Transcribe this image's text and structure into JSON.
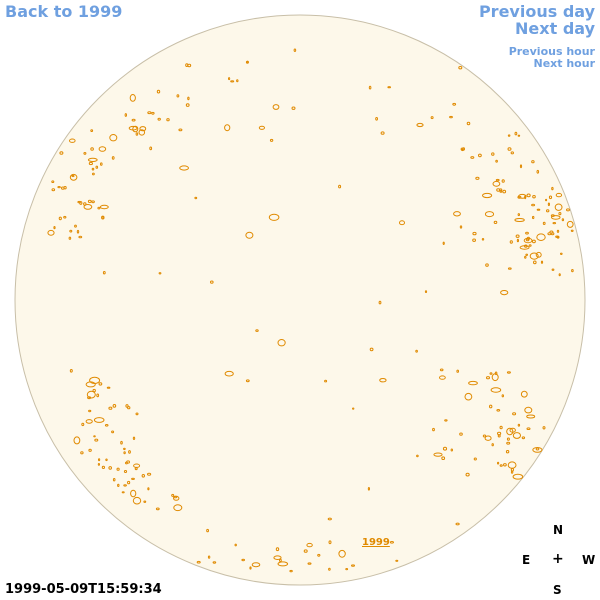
{
  "nav": {
    "back_label": "Back to 1999",
    "prev_day_label": "Previous day",
    "next_day_label": "Next day",
    "prev_hour_label": "Previous hour",
    "next_hour_label": "Next hour"
  },
  "image": {
    "year_link_label": "1999",
    "timestamp": "1999-05-09T15:59:34"
  },
  "compass": {
    "north": "N",
    "east": "E",
    "center": "+",
    "west": "W",
    "south": "S"
  },
  "colors": {
    "link": "#6fa0e0",
    "disk_fill": "#fdf8ea",
    "disk_edge": "#c8bfa8",
    "contour": "#e08a00"
  }
}
